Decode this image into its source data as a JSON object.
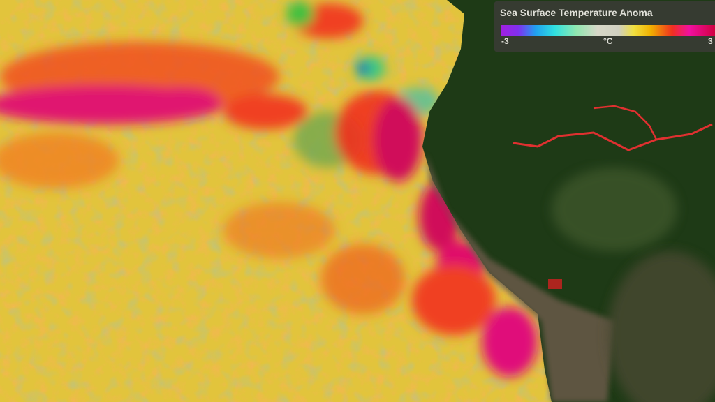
{
  "legend": {
    "title": "Sea Surface Temperature Anoma",
    "min_label": "-3",
    "unit_label": "°C",
    "max_label": "3",
    "colors": [
      "#a020e0",
      "#20a0f0",
      "#30e0e0",
      "#d8d8c8",
      "#f0e040",
      "#f0b000",
      "#f03020",
      "#f010a0",
      "#d00040"
    ]
  },
  "map": {
    "ocean_base": "#e8c83a",
    "land_color": "#1e3a16",
    "anomaly_hot": "#d0104a",
    "anomaly_warm": "#f07020"
  }
}
